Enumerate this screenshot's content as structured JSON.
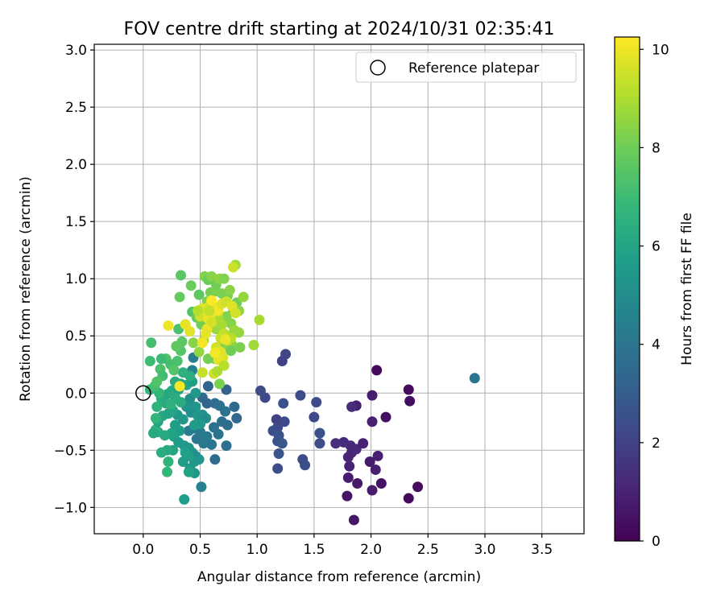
{
  "chart_data": {
    "type": "scatter",
    "title": "FOV centre drift starting at 2024/10/31 02:35:41",
    "xlabel": "Angular distance from reference (arcmin)",
    "ylabel": "Rotation from reference (arcmin)",
    "xlim": [
      -0.43,
      3.87
    ],
    "ylim": [
      -1.23,
      3.05
    ],
    "xticks": [
      0.0,
      0.5,
      1.0,
      1.5,
      2.0,
      2.5,
      3.0,
      3.5
    ],
    "xtick_labels": [
      "0.0",
      "0.5",
      "1.0",
      "1.5",
      "2.0",
      "2.5",
      "3.0",
      "3.5"
    ],
    "yticks": [
      -1.0,
      -0.5,
      0.0,
      0.5,
      1.0,
      1.5,
      2.0,
      2.5,
      3.0
    ],
    "ytick_labels": [
      "−1.0",
      "−0.5",
      "0.0",
      "0.5",
      "1.0",
      "1.5",
      "2.0",
      "2.5",
      "3.0"
    ],
    "grid": true,
    "legend": {
      "placement": "top-right",
      "label": "Reference platepar"
    },
    "reference_point": {
      "x": 0.0,
      "y": 0.0
    },
    "colorbar": {
      "label": "Hours from first FF file",
      "colormap": "viridis",
      "range": [
        0,
        10.25
      ],
      "ticks": [
        0,
        2,
        4,
        6,
        8,
        10
      ],
      "tick_labels": [
        "0",
        "2",
        "4",
        "6",
        "8",
        "10"
      ]
    },
    "series": [
      {
        "points": [
          [
            2.05,
            0.2,
            0.2
          ],
          [
            2.33,
            0.03,
            0.3
          ],
          [
            2.34,
            -0.07,
            0.35
          ],
          [
            2.13,
            -0.21,
            0.4
          ],
          [
            2.41,
            -0.82,
            0.3
          ],
          [
            2.33,
            -0.92,
            0.25
          ],
          [
            2.09,
            -0.79,
            0.5
          ],
          [
            1.85,
            -1.11,
            0.6
          ],
          [
            1.79,
            -0.9,
            0.55
          ],
          [
            1.88,
            -0.79,
            0.7
          ],
          [
            2.01,
            -0.85,
            0.8
          ],
          [
            2.04,
            -0.67,
            0.9
          ],
          [
            1.99,
            -0.6,
            0.75
          ],
          [
            2.06,
            -0.55,
            0.95
          ],
          [
            1.8,
            -0.74,
            0.85
          ],
          [
            1.81,
            -0.64,
            1.0
          ],
          [
            1.83,
            -0.52,
            1.1
          ],
          [
            1.87,
            -0.49,
            1.2
          ],
          [
            1.8,
            -0.56,
            1.05
          ],
          [
            1.82,
            -0.46,
            1.15
          ],
          [
            1.76,
            -0.43,
            1.25
          ],
          [
            1.69,
            -0.44,
            1.3
          ],
          [
            1.93,
            -0.44,
            1.0
          ],
          [
            2.01,
            -0.25,
            0.9
          ],
          [
            2.01,
            -0.02,
            0.85
          ],
          [
            1.87,
            -0.11,
            0.9
          ],
          [
            1.83,
            -0.12,
            1.3
          ],
          [
            1.22,
            0.28,
            2.0
          ],
          [
            1.25,
            0.34,
            2.1
          ],
          [
            1.03,
            0.02,
            2.3
          ],
          [
            1.07,
            -0.04,
            2.2
          ],
          [
            1.38,
            -0.02,
            2.4
          ],
          [
            1.23,
            -0.09,
            2.5
          ],
          [
            1.52,
            -0.08,
            2.3
          ],
          [
            1.5,
            -0.21,
            2.2
          ],
          [
            1.55,
            -0.35,
            2.6
          ],
          [
            1.55,
            -0.44,
            2.4
          ],
          [
            1.17,
            -0.23,
            2.0
          ],
          [
            1.18,
            -0.3,
            2.2
          ],
          [
            1.24,
            -0.25,
            2.3
          ],
          [
            1.14,
            -0.33,
            2.5
          ],
          [
            1.19,
            -0.37,
            2.6
          ],
          [
            1.18,
            -0.42,
            2.7
          ],
          [
            1.22,
            -0.44,
            2.8
          ],
          [
            1.19,
            -0.53,
            2.7
          ],
          [
            1.18,
            -0.66,
            2.4
          ],
          [
            1.4,
            -0.58,
            2.3
          ],
          [
            1.42,
            -0.63,
            2.5
          ],
          [
            0.73,
            0.03,
            3.2
          ],
          [
            0.57,
            0.06,
            3.3
          ],
          [
            0.52,
            -0.04,
            3.5
          ],
          [
            0.56,
            -0.09,
            3.3
          ],
          [
            0.63,
            -0.09,
            3.6
          ],
          [
            0.67,
            -0.11,
            3.8
          ],
          [
            0.72,
            -0.16,
            3.9
          ],
          [
            0.8,
            -0.12,
            3.5
          ],
          [
            0.82,
            -0.22,
            3.4
          ],
          [
            0.74,
            -0.28,
            3.6
          ],
          [
            0.69,
            -0.25,
            3.7
          ],
          [
            0.62,
            -0.3,
            3.8
          ],
          [
            0.66,
            -0.36,
            3.9
          ],
          [
            0.6,
            -0.45,
            4.0
          ],
          [
            0.53,
            -0.44,
            4.1
          ],
          [
            0.56,
            -0.38,
            4.2
          ],
          [
            0.5,
            -0.34,
            4.3
          ],
          [
            0.47,
            -0.4,
            4.0
          ],
          [
            0.44,
            -0.31,
            4.2
          ],
          [
            0.4,
            -0.33,
            4.3
          ],
          [
            0.73,
            -0.46,
            3.7
          ],
          [
            0.63,
            -0.58,
            3.6
          ],
          [
            0.51,
            -0.82,
            4.5
          ],
          [
            0.44,
            0.31,
            4.4
          ],
          [
            0.43,
            0.2,
            4.6
          ],
          [
            0.41,
            -0.05,
            5.0
          ],
          [
            0.38,
            -0.12,
            5.2
          ],
          [
            0.42,
            -0.17,
            5.1
          ],
          [
            0.46,
            -0.12,
            5.3
          ],
          [
            0.48,
            -0.2,
            5.4
          ],
          [
            0.52,
            -0.19,
            5.2
          ],
          [
            0.55,
            -0.22,
            5.0
          ],
          [
            0.5,
            -0.27,
            5.5
          ],
          [
            0.45,
            -0.28,
            5.6
          ],
          [
            0.35,
            -0.23,
            5.4
          ],
          [
            0.3,
            -0.19,
            5.5
          ],
          [
            0.28,
            -0.28,
            5.7
          ],
          [
            0.32,
            -0.33,
            5.6
          ],
          [
            0.27,
            -0.38,
            5.8
          ],
          [
            0.25,
            -0.35,
            5.9
          ],
          [
            0.31,
            -0.43,
            5.6
          ],
          [
            0.36,
            -0.46,
            5.5
          ],
          [
            0.4,
            -0.48,
            5.4
          ],
          [
            0.43,
            -0.52,
            5.2
          ],
          [
            0.46,
            -0.55,
            5.0
          ],
          [
            0.49,
            -0.58,
            5.3
          ],
          [
            0.45,
            -0.6,
            5.5
          ],
          [
            0.4,
            -0.55,
            5.7
          ],
          [
            0.37,
            -0.52,
            5.8
          ],
          [
            0.35,
            -0.6,
            5.6
          ],
          [
            0.41,
            -0.66,
            5.4
          ],
          [
            0.45,
            -0.7,
            5.5
          ],
          [
            0.4,
            -0.69,
            5.9
          ],
          [
            0.36,
            -0.93,
            5.7
          ],
          [
            0.26,
            -0.5,
            6.0
          ],
          [
            0.21,
            -0.5,
            6.2
          ],
          [
            0.16,
            -0.52,
            6.4
          ],
          [
            0.19,
            -0.37,
            6.1
          ],
          [
            0.13,
            -0.34,
            6.3
          ],
          [
            0.11,
            -0.32,
            6.5
          ],
          [
            0.09,
            -0.35,
            6.2
          ],
          [
            0.13,
            -0.25,
            6.0
          ],
          [
            0.17,
            -0.2,
            6.1
          ],
          [
            0.22,
            -0.18,
            5.9
          ],
          [
            0.26,
            -0.15,
            6.0
          ],
          [
            0.2,
            -0.09,
            6.2
          ],
          [
            0.16,
            -0.05,
            6.3
          ],
          [
            0.21,
            -0.01,
            6.1
          ],
          [
            0.25,
            0.02,
            6.2
          ],
          [
            0.31,
            0.03,
            5.9
          ],
          [
            0.33,
            0.08,
            6.0
          ],
          [
            0.28,
            0.1,
            6.3
          ],
          [
            0.38,
            0.07,
            6.1
          ],
          [
            0.43,
            0.1,
            5.8
          ],
          [
            0.46,
            0.0,
            5.5
          ],
          [
            0.41,
            0.15,
            6.4
          ],
          [
            0.35,
            0.18,
            6.5
          ],
          [
            0.24,
            -0.1,
            6.5
          ],
          [
            0.28,
            -0.04,
            6.4
          ],
          [
            0.33,
            -0.08,
            6.3
          ],
          [
            0.22,
            -0.6,
            6.6
          ],
          [
            0.21,
            -0.69,
            6.8
          ],
          [
            0.06,
            0.03,
            6.7
          ],
          [
            0.1,
            0.05,
            6.5
          ],
          [
            0.14,
            0.0,
            6.8
          ],
          [
            0.12,
            -0.12,
            6.6
          ],
          [
            0.11,
            -0.22,
            6.7
          ],
          [
            0.06,
            0.28,
            7.0
          ],
          [
            0.07,
            0.44,
            7.2
          ],
          [
            0.15,
            0.21,
            7.3
          ],
          [
            0.17,
            0.15,
            7.1
          ],
          [
            0.2,
            0.3,
            7.4
          ],
          [
            0.24,
            0.25,
            7.2
          ],
          [
            0.27,
            0.2,
            7.5
          ],
          [
            0.3,
            0.28,
            7.3
          ],
          [
            0.16,
            0.3,
            7.0
          ],
          [
            0.1,
            0.06,
            7.2
          ],
          [
            0.12,
            0.1,
            7.4
          ],
          [
            0.34,
            0.45,
            7.6
          ],
          [
            0.33,
            0.37,
            7.5
          ],
          [
            0.29,
            0.41,
            7.7
          ],
          [
            0.31,
            0.56,
            7.3
          ],
          [
            0.37,
            0.6,
            7.6
          ],
          [
            0.32,
            0.84,
            7.8
          ],
          [
            0.33,
            1.03,
            7.6
          ],
          [
            0.42,
            0.94,
            7.9
          ],
          [
            0.49,
            0.86,
            7.7
          ],
          [
            0.43,
            0.71,
            7.5
          ],
          [
            0.47,
            0.66,
            7.8
          ],
          [
            0.51,
            0.6,
            8.0
          ],
          [
            0.56,
            0.8,
            8.2
          ],
          [
            0.59,
            0.88,
            8.1
          ],
          [
            0.54,
            1.02,
            8.3
          ],
          [
            0.57,
            0.99,
            7.9
          ],
          [
            0.6,
            1.02,
            8.4
          ],
          [
            0.64,
            0.89,
            8.2
          ],
          [
            0.64,
            0.95,
            8.0
          ],
          [
            0.67,
            1.0,
            8.5
          ],
          [
            0.71,
            1.0,
            8.3
          ],
          [
            0.69,
            0.87,
            8.2
          ],
          [
            0.74,
            0.85,
            8.1
          ],
          [
            0.76,
            0.9,
            8.4
          ],
          [
            0.82,
            0.79,
            8.0
          ],
          [
            0.79,
            0.72,
            8.2
          ],
          [
            0.84,
            0.72,
            8.5
          ],
          [
            0.73,
            0.67,
            8.3
          ],
          [
            0.77,
            0.61,
            8.4
          ],
          [
            0.84,
            0.53,
            8.6
          ],
          [
            0.8,
            0.55,
            8.7
          ],
          [
            0.75,
            0.5,
            8.6
          ],
          [
            0.7,
            0.45,
            8.4
          ],
          [
            0.73,
            0.41,
            8.3
          ],
          [
            0.78,
            0.42,
            8.5
          ],
          [
            0.85,
            0.4,
            8.2
          ],
          [
            0.88,
            0.84,
            8.6
          ],
          [
            0.81,
            1.12,
            8.8
          ],
          [
            0.57,
            0.3,
            8.1
          ],
          [
            0.63,
            0.3,
            8.0
          ],
          [
            0.67,
            0.08,
            8.2
          ],
          [
            0.77,
            0.37,
            8.0
          ],
          [
            0.97,
            0.42,
            8.8
          ],
          [
            1.02,
            0.64,
            8.9
          ],
          [
            0.64,
            0.56,
            8.7
          ],
          [
            0.69,
            0.6,
            8.9
          ],
          [
            0.61,
            0.62,
            8.8
          ],
          [
            0.66,
            0.66,
            9.0
          ],
          [
            0.53,
            0.46,
            8.7
          ],
          [
            0.49,
            0.36,
            8.6
          ],
          [
            0.44,
            0.44,
            8.4
          ],
          [
            0.5,
            0.67,
            9.5
          ],
          [
            0.54,
            0.72,
            9.7
          ],
          [
            0.57,
            0.65,
            9.9
          ],
          [
            0.6,
            0.7,
            10.0
          ],
          [
            0.52,
            0.74,
            9.8
          ],
          [
            0.58,
            0.76,
            9.6
          ],
          [
            0.63,
            0.75,
            9.9
          ],
          [
            0.66,
            0.72,
            10.1
          ],
          [
            0.69,
            0.78,
            9.7
          ],
          [
            0.6,
            0.81,
            10.2
          ],
          [
            0.73,
            0.8,
            9.5
          ],
          [
            0.78,
            0.76,
            9.8
          ],
          [
            0.81,
            0.7,
            9.6
          ],
          [
            0.56,
            0.56,
            10.0
          ],
          [
            0.55,
            0.52,
            9.9
          ],
          [
            0.64,
            0.4,
            9.6
          ],
          [
            0.68,
            0.36,
            9.8
          ],
          [
            0.7,
            0.31,
            9.7
          ],
          [
            0.66,
            0.29,
            9.9
          ],
          [
            0.63,
            0.35,
            10.1
          ],
          [
            0.52,
            0.44,
            10.1
          ],
          [
            0.41,
            0.54,
            9.8
          ],
          [
            0.37,
            0.6,
            9.9
          ],
          [
            0.22,
            0.59,
            10.0
          ],
          [
            0.32,
            0.06,
            10.2
          ],
          [
            0.52,
            0.18,
            9.4
          ],
          [
            0.71,
            0.52,
            9.3
          ],
          [
            0.74,
            0.46,
            9.5
          ],
          [
            0.77,
            0.48,
            9.2
          ],
          [
            0.68,
            0.48,
            9.4
          ],
          [
            0.79,
            1.1,
            9.5
          ],
          [
            0.72,
            0.47,
            10.0
          ],
          [
            0.58,
            0.72,
            9.3
          ],
          [
            0.48,
            0.72,
            9.1
          ],
          [
            0.71,
            0.24,
            9.2
          ],
          [
            0.62,
            0.17,
            9.5
          ],
          [
            0.65,
            0.19,
            9.0
          ],
          [
            0.6,
            0.62,
            9.6
          ],
          [
            2.91,
            0.13,
            3.9
          ]
        ]
      }
    ]
  }
}
